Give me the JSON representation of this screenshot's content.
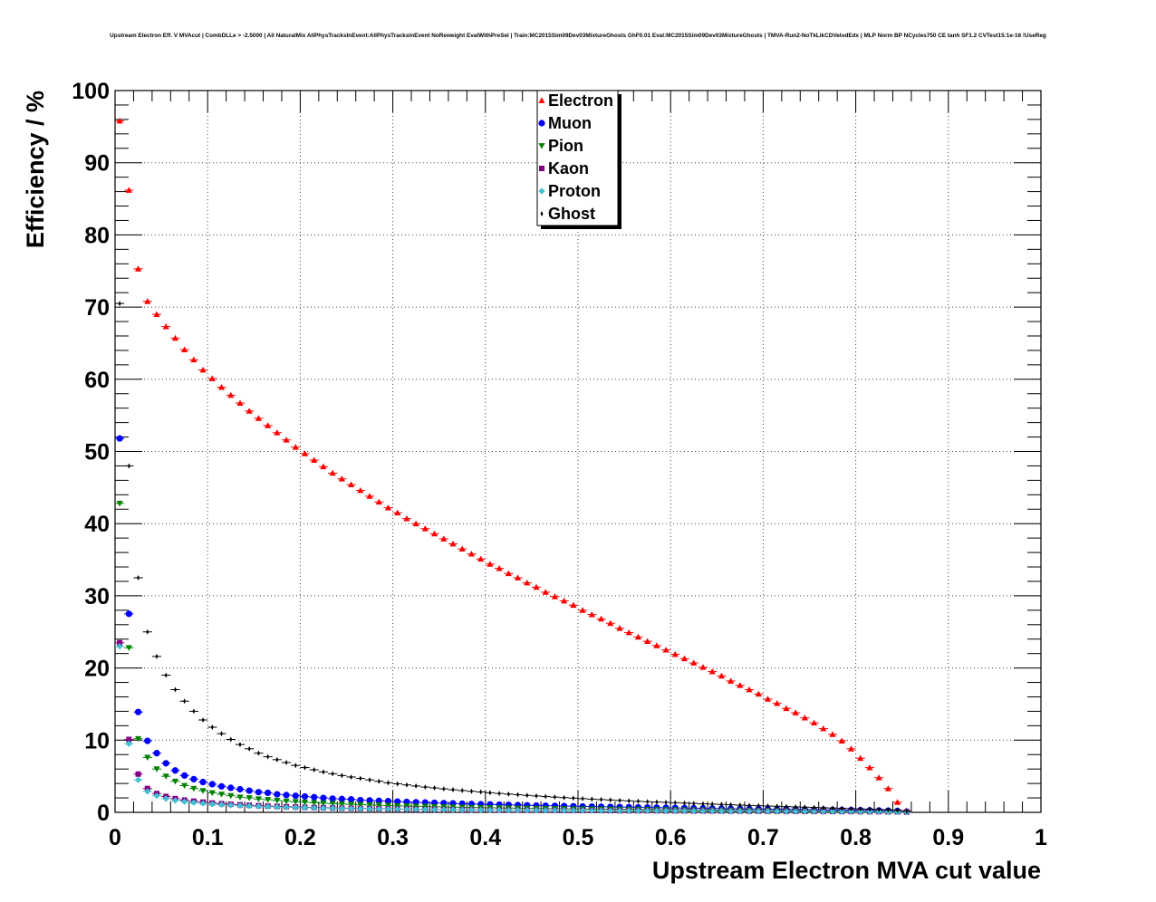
{
  "chart_data": {
    "type": "scatter",
    "title": "Upstream Electron Eff. V MVAcut | CombDLLe > -2.5000 | All NaturalMix AllPhysTracksInEvent:AllPhysTracksInEvent NoReweight EvalWithPreSel | Train:MC2015Sim09Dev03MixtureGhosts GhF0.01 Eval:MC2015Sim09Dev03MixtureGhosts | TMVA-Run2-NoTkLikCDVelodEdx | MLP Norm BP NCycles750 CE tanh SF1.2 CVTest15:1e-16 !UseReg",
    "xlabel": "Upstream Electron MVA cut value",
    "ylabel": "Efficiency / %",
    "xlim": [
      0,
      1
    ],
    "ylim": [
      0,
      100
    ],
    "xticks": [
      "0",
      "0.1",
      "0.2",
      "0.3",
      "0.4",
      "0.5",
      "0.6",
      "0.7",
      "0.8",
      "0.9",
      "1"
    ],
    "yticks": [
      "0",
      "10",
      "20",
      "30",
      "40",
      "50",
      "60",
      "70",
      "80",
      "90",
      "100"
    ],
    "grid": true,
    "legend_position": "top-center",
    "x_start": 0.005,
    "x_step": 0.01,
    "series": [
      {
        "name": "Electron",
        "color": "#ff0000",
        "marker": "triangle-up",
        "values": [
          95.8,
          86.2,
          75.3,
          70.8,
          69.0,
          67.3,
          65.7,
          64.1,
          62.7,
          61.3,
          60.1,
          58.9,
          57.8,
          56.7,
          55.6,
          54.6,
          53.6,
          52.6,
          51.6,
          50.6,
          49.7,
          48.8,
          47.9,
          47.0,
          46.2,
          45.4,
          44.6,
          43.8,
          43.0,
          42.2,
          41.5,
          40.7,
          40.0,
          39.3,
          38.6,
          37.9,
          37.2,
          36.5,
          35.8,
          35.1,
          34.4,
          33.8,
          33.1,
          32.5,
          31.8,
          31.2,
          30.5,
          29.9,
          29.3,
          28.7,
          28.0,
          27.4,
          26.8,
          26.2,
          25.5,
          24.9,
          24.3,
          23.7,
          23.1,
          22.5,
          21.9,
          21.3,
          20.7,
          20.1,
          19.5,
          18.9,
          18.2,
          17.6,
          17.0,
          16.4,
          15.7,
          15.1,
          14.4,
          13.8,
          13.1,
          12.4,
          11.6,
          10.8,
          9.9,
          8.8,
          7.5,
          6.2,
          4.8,
          3.3,
          1.4,
          0.2
        ]
      },
      {
        "name": "Muon",
        "color": "#0000ff",
        "marker": "circle",
        "values": [
          51.8,
          27.5,
          13.9,
          9.9,
          8.2,
          6.8,
          5.8,
          5.1,
          4.6,
          4.2,
          3.9,
          3.6,
          3.4,
          3.2,
          3.0,
          2.8,
          2.7,
          2.5,
          2.4,
          2.3,
          2.2,
          2.1,
          2.0,
          1.9,
          1.85,
          1.8,
          1.7,
          1.65,
          1.6,
          1.55,
          1.5,
          1.45,
          1.4,
          1.36,
          1.32,
          1.28,
          1.24,
          1.2,
          1.16,
          1.13,
          1.1,
          1.07,
          1.04,
          1.01,
          0.98,
          0.95,
          0.92,
          0.9,
          0.87,
          0.85,
          0.82,
          0.8,
          0.78,
          0.76,
          0.74,
          0.72,
          0.7,
          0.68,
          0.66,
          0.64,
          0.62,
          0.6,
          0.58,
          0.56,
          0.55,
          0.53,
          0.51,
          0.5,
          0.48,
          0.46,
          0.45,
          0.43,
          0.42,
          0.4,
          0.39,
          0.37,
          0.36,
          0.34,
          0.33,
          0.31,
          0.3,
          0.28,
          0.26,
          0.24,
          0.2,
          0.1
        ]
      },
      {
        "name": "Pion",
        "color": "#008000",
        "marker": "triangle-down",
        "values": [
          42.8,
          22.8,
          10.2,
          7.6,
          6.0,
          5.0,
          4.3,
          3.7,
          3.3,
          3.0,
          2.7,
          2.5,
          2.3,
          2.1,
          2.0,
          1.85,
          1.75,
          1.65,
          1.55,
          1.47,
          1.4,
          1.33,
          1.27,
          1.21,
          1.16,
          1.11,
          1.06,
          1.02,
          0.98,
          0.94,
          0.9,
          0.87,
          0.84,
          0.81,
          0.78,
          0.75,
          0.72,
          0.7,
          0.68,
          0.66,
          0.64,
          0.62,
          0.6,
          0.58,
          0.56,
          0.55,
          0.53,
          0.52,
          0.5,
          0.49,
          0.47,
          0.46,
          0.45,
          0.44,
          0.42,
          0.41,
          0.4,
          0.39,
          0.38,
          0.37,
          0.36,
          0.35,
          0.34,
          0.33,
          0.32,
          0.31,
          0.3,
          0.29,
          0.28,
          0.27,
          0.26,
          0.25,
          0.24,
          0.23,
          0.22,
          0.21,
          0.2,
          0.19,
          0.18,
          0.17,
          0.16,
          0.15,
          0.14,
          0.12,
          0.1,
          0.05
        ]
      },
      {
        "name": "Kaon",
        "color": "#800080",
        "marker": "square",
        "values": [
          23.5,
          10.1,
          5.3,
          3.3,
          2.6,
          2.2,
          1.9,
          1.7,
          1.55,
          1.42,
          1.3,
          1.2,
          1.12,
          1.05,
          0.98,
          0.92,
          0.87,
          0.82,
          0.78,
          0.74,
          0.7,
          0.67,
          0.64,
          0.61,
          0.58,
          0.56,
          0.54,
          0.52,
          0.5,
          0.48,
          0.46,
          0.45,
          0.43,
          0.42,
          0.41,
          0.39,
          0.38,
          0.37,
          0.36,
          0.35,
          0.34,
          0.33,
          0.32,
          0.31,
          0.3,
          0.3,
          0.29,
          0.28,
          0.27,
          0.27,
          0.26,
          0.25,
          0.25,
          0.24,
          0.23,
          0.23,
          0.22,
          0.22,
          0.21,
          0.21,
          0.2,
          0.2,
          0.19,
          0.19,
          0.18,
          0.18,
          0.17,
          0.17,
          0.16,
          0.16,
          0.15,
          0.15,
          0.14,
          0.14,
          0.13,
          0.13,
          0.12,
          0.12,
          0.11,
          0.11,
          0.1,
          0.1,
          0.09,
          0.08,
          0.07,
          0.04
        ]
      },
      {
        "name": "Proton",
        "color": "#40c0d0",
        "marker": "diamond",
        "values": [
          23.0,
          9.5,
          4.5,
          2.9,
          2.3,
          1.9,
          1.65,
          1.48,
          1.35,
          1.24,
          1.14,
          1.06,
          0.99,
          0.93,
          0.87,
          0.82,
          0.78,
          0.74,
          0.7,
          0.67,
          0.64,
          0.61,
          0.58,
          0.56,
          0.54,
          0.52,
          0.5,
          0.48,
          0.46,
          0.45,
          0.43,
          0.42,
          0.41,
          0.39,
          0.38,
          0.37,
          0.36,
          0.35,
          0.34,
          0.33,
          0.32,
          0.31,
          0.3,
          0.3,
          0.29,
          0.28,
          0.27,
          0.27,
          0.26,
          0.25,
          0.25,
          0.24,
          0.23,
          0.23,
          0.22,
          0.22,
          0.21,
          0.21,
          0.2,
          0.2,
          0.19,
          0.19,
          0.18,
          0.18,
          0.17,
          0.17,
          0.16,
          0.16,
          0.15,
          0.15,
          0.14,
          0.14,
          0.13,
          0.13,
          0.12,
          0.12,
          0.11,
          0.11,
          0.1,
          0.1,
          0.09,
          0.09,
          0.08,
          0.07,
          0.06,
          0.03
        ]
      },
      {
        "name": "Ghost",
        "color": "#000000",
        "marker": "cross",
        "values": [
          70.5,
          48.0,
          32.5,
          25.0,
          21.6,
          19.0,
          17.0,
          15.4,
          14.0,
          12.8,
          11.8,
          10.9,
          10.1,
          9.4,
          8.8,
          8.2,
          7.7,
          7.3,
          6.9,
          6.5,
          6.2,
          5.9,
          5.6,
          5.35,
          5.1,
          4.9,
          4.7,
          4.5,
          4.3,
          4.1,
          3.95,
          3.8,
          3.65,
          3.5,
          3.38,
          3.25,
          3.13,
          3.02,
          2.92,
          2.82,
          2.72,
          2.62,
          2.53,
          2.44,
          2.35,
          2.27,
          2.19,
          2.11,
          2.04,
          1.97,
          1.9,
          1.83,
          1.77,
          1.71,
          1.65,
          1.59,
          1.53,
          1.48,
          1.43,
          1.38,
          1.33,
          1.28,
          1.23,
          1.18,
          1.14,
          1.1,
          1.05,
          1.0,
          0.96,
          0.92,
          0.88,
          0.84,
          0.8,
          0.76,
          0.72,
          0.68,
          0.64,
          0.6,
          0.56,
          0.52,
          0.48,
          0.44,
          0.4,
          0.35,
          0.28,
          0.15
        ]
      }
    ]
  }
}
